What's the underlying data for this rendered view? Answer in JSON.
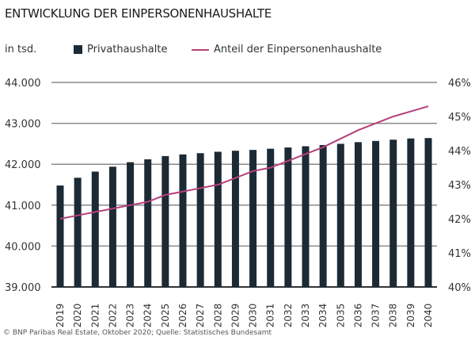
{
  "chart_data": {
    "type": "bar+line",
    "title": "ENTWICKLUNG DER EINPERSONENHAUSHALTE",
    "ylabel": "in tsd.",
    "categories": [
      "2019",
      "2020",
      "2021",
      "2022",
      "2023",
      "2024",
      "2025",
      "2026",
      "2027",
      "2028",
      "2029",
      "2030",
      "2031",
      "2032",
      "2033",
      "2034",
      "2035",
      "2036",
      "2037",
      "2038",
      "2039",
      "2040"
    ],
    "series": [
      {
        "name": "Privathaushalte",
        "type": "bar",
        "axis": "left",
        "color": "#1c2a35",
        "values": [
          41480,
          41670,
          41820,
          41940,
          42050,
          42120,
          42200,
          42240,
          42270,
          42305,
          42330,
          42350,
          42380,
          42410,
          42440,
          42470,
          42500,
          42540,
          42570,
          42600,
          42630,
          42640
        ]
      },
      {
        "name": "Anteil der Einpersonenhaushalte",
        "type": "line",
        "axis": "right",
        "color": "#b5407a",
        "values": [
          42.0,
          42.1,
          42.2,
          42.3,
          42.4,
          42.5,
          42.7,
          42.8,
          42.9,
          43.0,
          43.2,
          43.4,
          43.5,
          43.7,
          43.9,
          44.1,
          44.35,
          44.6,
          44.8,
          45.0,
          45.15,
          45.3
        ]
      }
    ],
    "ylim_left": [
      39000,
      44000
    ],
    "yticks_left": [
      "39.000",
      "40.000",
      "41.000",
      "42.000",
      "43.000",
      "44.000"
    ],
    "ylim_right": [
      40,
      46
    ],
    "yticks_right": [
      "40%",
      "41%",
      "42%",
      "43%",
      "44%",
      "45%",
      "46%"
    ],
    "grid": true,
    "legend": "top"
  },
  "footer": "© BNP Paribas Real Estate, Oktober 2020; Quelle: Statistisches Bundesamt"
}
